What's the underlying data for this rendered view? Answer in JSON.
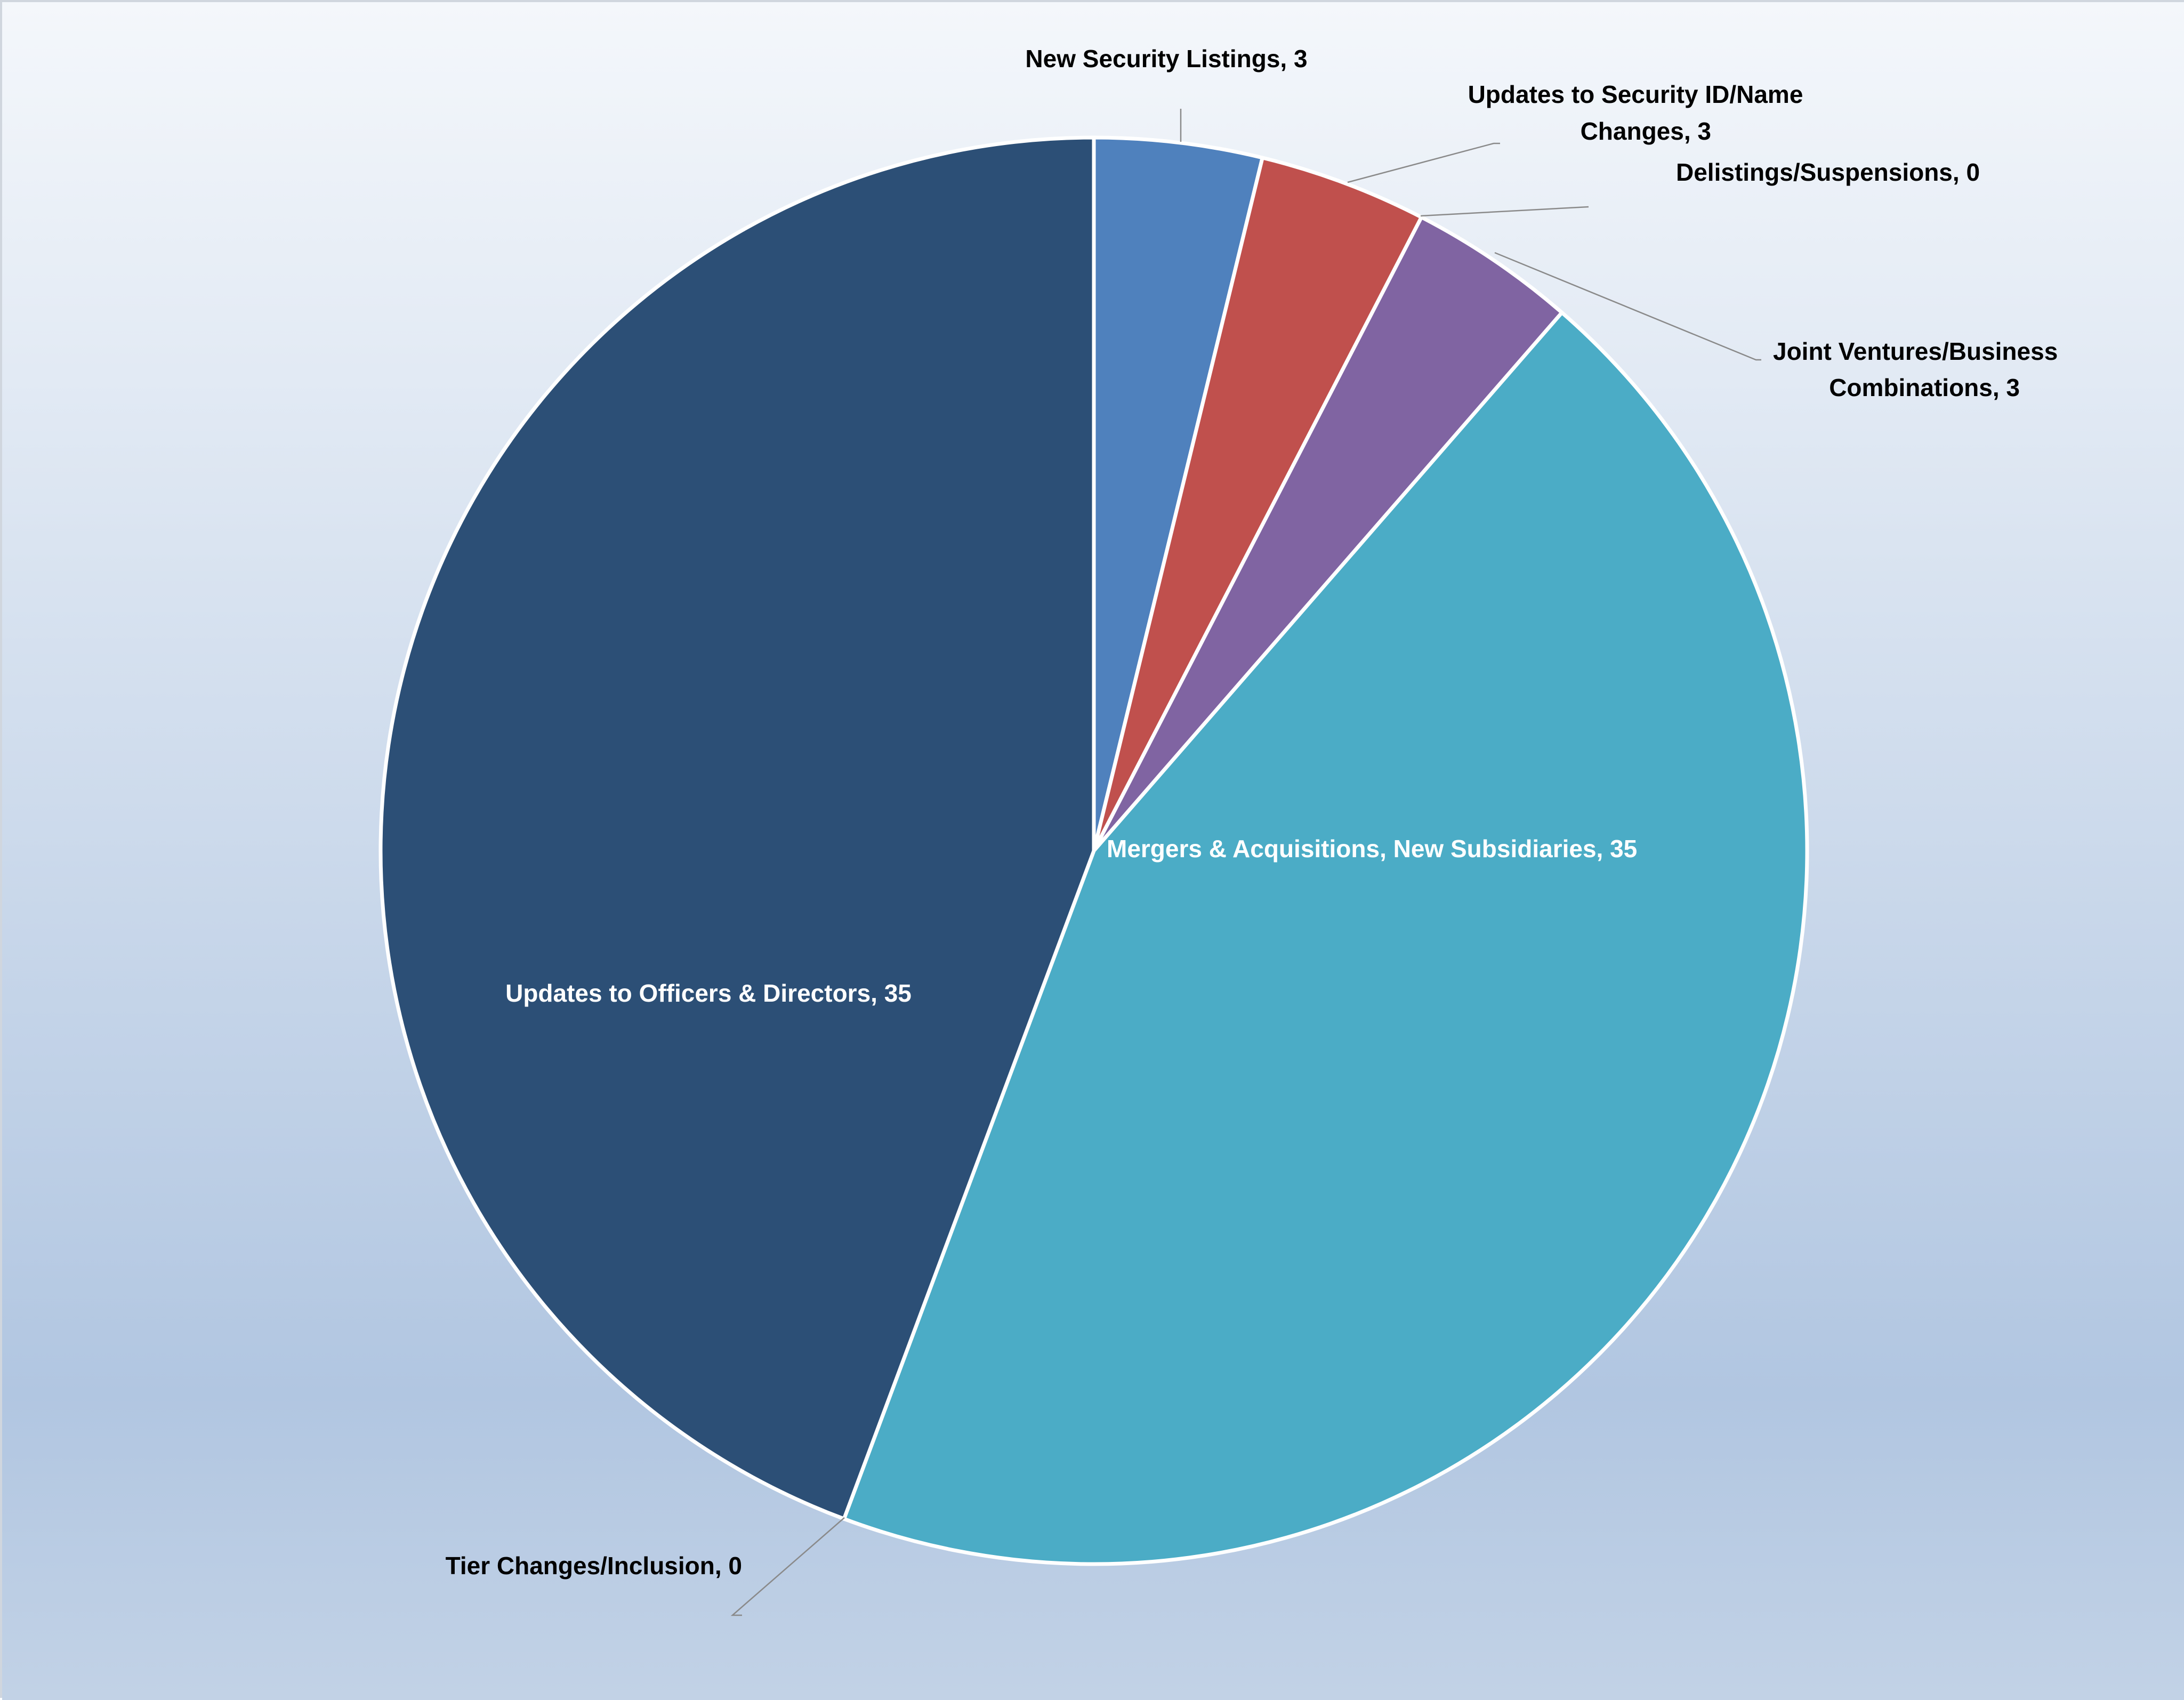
{
  "chart_data": {
    "type": "pie",
    "title": "",
    "slices": [
      {
        "label": "New Security Listings",
        "value": 3,
        "display": "New Security Listings, 3",
        "color": "#4f81bd"
      },
      {
        "label": "Updates to Security ID/Name Changes",
        "value": 3,
        "display": "Updates to Security ID/Name Changes, 3",
        "color": "#c0504d"
      },
      {
        "label": "Delistings/Suspensions",
        "value": 0,
        "display": "Delistings/Suspensions, 0",
        "color": "#9bbb59"
      },
      {
        "label": "Joint Ventures/Business Combinations",
        "value": 3,
        "display": "Joint Ventures/Business Combinations, 3",
        "color": "#8064a2"
      },
      {
        "label": "Mergers & Acquisitions, New Subsidiaries",
        "value": 35,
        "display": "Mergers & Acquisitions, New Subsidiaries, 35",
        "color": "#4bacc6"
      },
      {
        "label": "Tier Changes/Inclusion",
        "value": 0,
        "display": "Tier Changes/Inclusion, 0",
        "color": "#f79646"
      },
      {
        "label": "Updates to Officers & Directors",
        "value": 35,
        "display": "Updates to Officers & Directors, 35",
        "color": "#2c4f76"
      }
    ],
    "legend": "none",
    "background_gradient": [
      "#f4f7fb",
      "#b1c6e1",
      "#c2d2e6"
    ]
  }
}
